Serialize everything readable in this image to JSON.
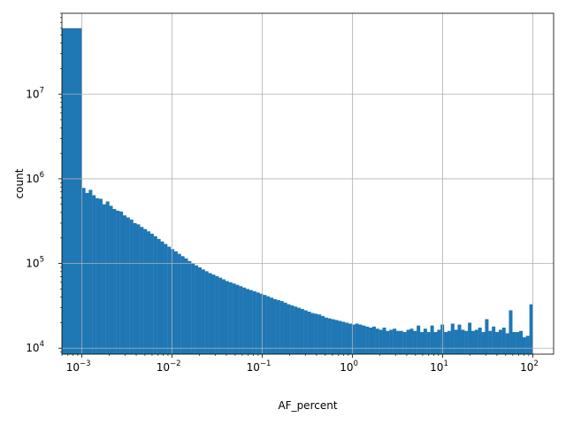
{
  "chart_data": {
    "type": "bar",
    "title": "",
    "xlabel": "AF_percent",
    "ylabel": "count",
    "x_scale": "log",
    "y_scale": "log",
    "xlim": [
      0.0006,
      170
    ],
    "ylim": [
      8500,
      90000000
    ],
    "grid": true,
    "legend": "none",
    "bar_color": "#1f77b4",
    "x_ticks": [
      {
        "value": 0.001,
        "base": "10",
        "exp": "−3"
      },
      {
        "value": 0.01,
        "base": "10",
        "exp": "−2"
      },
      {
        "value": 0.1,
        "base": "10",
        "exp": "−1"
      },
      {
        "value": 1,
        "base": "10",
        "exp": "0"
      },
      {
        "value": 10,
        "base": "10",
        "exp": "1"
      },
      {
        "value": 100,
        "base": "10",
        "exp": "2"
      }
    ],
    "y_ticks": [
      {
        "value": 10000,
        "base": "10",
        "exp": "4"
      },
      {
        "value": 100000,
        "base": "10",
        "exp": "5"
      },
      {
        "value": 1000000,
        "base": "10",
        "exp": "6"
      },
      {
        "value": 10000000,
        "base": "10",
        "exp": "7"
      }
    ],
    "bins": [
      {
        "x0": 0.0006,
        "x1": 0.001,
        "count": 60000000
      },
      {
        "x0": 0.001,
        "x1": 100,
        "counts": [
          780000,
          680000,
          740000,
          640000,
          590000,
          580000,
          500000,
          540000,
          480000,
          440000,
          420000,
          410000,
          370000,
          350000,
          330000,
          300000,
          290000,
          270000,
          255000,
          240000,
          225000,
          210000,
          195000,
          182000,
          170000,
          158000,
          148000,
          139000,
          130000,
          122000,
          115000,
          107000,
          101000,
          95000,
          90000,
          85000,
          81000,
          77000,
          74000,
          71000,
          68000,
          65000,
          62000,
          60000,
          58000,
          56000,
          54000,
          52000,
          50000,
          48500,
          47000,
          45500,
          44000,
          42500,
          41000,
          39500,
          38000,
          37000,
          36000,
          34500,
          33000,
          32000,
          31000,
          30000,
          29000,
          28000,
          27000,
          26000,
          25500,
          25000,
          24000,
          23000,
          22500,
          22000,
          21500,
          21000,
          20500,
          20000,
          19500,
          19000,
          19500,
          19000,
          18500,
          18000,
          17500,
          18000,
          17000,
          16500,
          17500,
          16000,
          16500,
          17000,
          16000,
          16000,
          15500,
          16500,
          17000,
          16000,
          18500,
          15500,
          17000,
          15500,
          18500,
          15500,
          16500,
          19000,
          15500,
          16000,
          19500,
          16500,
          19000,
          16500,
          16000,
          20000,
          16000,
          16500,
          17500,
          15500,
          22000,
          16000,
          18000,
          15500,
          16500,
          17500,
          15000,
          28000,
          15500,
          15500,
          16000,
          13500,
          14000,
          33000
        ]
      }
    ]
  }
}
